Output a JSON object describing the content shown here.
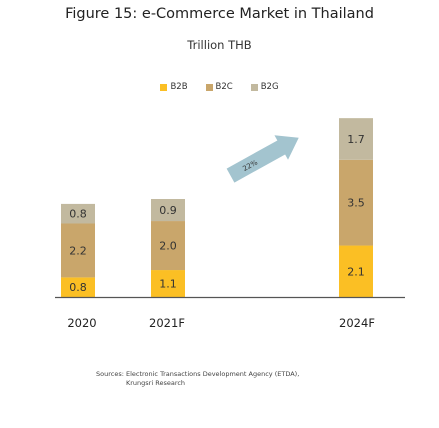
{
  "header": {
    "title": "Figure 15: e-Commerce Market in Thailand",
    "subtitle": "Trillion THB"
  },
  "colors": {
    "B2B": "#fbbf24",
    "B2C": "#c9a66b",
    "B2G": "#c2b99f",
    "axis": "#555555",
    "arrow": "#a3c4cf"
  },
  "chart_data": {
    "type": "bar",
    "stacked": true,
    "categories": [
      "2020",
      "2021F",
      "2024F"
    ],
    "series": [
      {
        "name": "B2B",
        "values": [
          0.8,
          1.1,
          2.1
        ]
      },
      {
        "name": "B2C",
        "values": [
          2.2,
          2.0,
          3.5
        ]
      },
      {
        "name": "B2G",
        "values": [
          0.8,
          0.9,
          1.7
        ]
      }
    ],
    "annotations": [
      {
        "text": "22%"
      }
    ]
  },
  "footer": {
    "source_line1": "Sources: Electronic Transactions Development Agency (ETDA),",
    "source_line2": "Krungsri Research"
  }
}
